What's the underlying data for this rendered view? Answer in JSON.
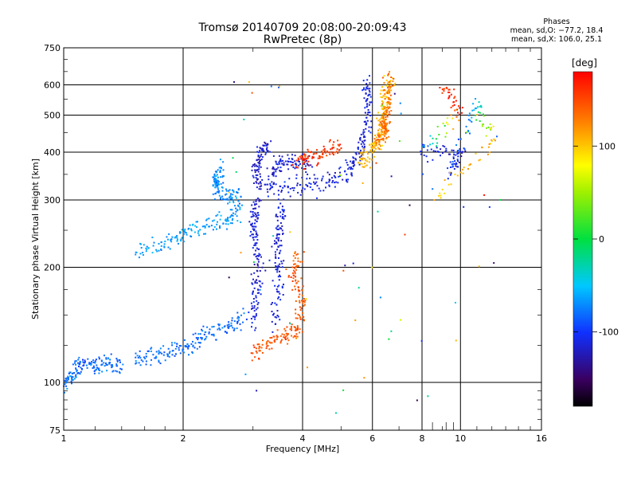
{
  "chart_data": {
    "type": "scatter",
    "title": "Tromsø 20140709 20:08:00-20:09:43",
    "subtitle": "RwPretec (8p)",
    "xlabel": "Frequency [MHz]",
    "ylabel": "Stationary phase Virtual Height [km]",
    "x_scale": "log",
    "y_scale": "log",
    "xlim": [
      1,
      16
    ],
    "ylim": [
      75,
      750
    ],
    "x_ticks": [
      1,
      2,
      4,
      6,
      8,
      10,
      16
    ],
    "y_ticks": [
      75,
      100,
      200,
      300,
      400,
      500,
      600,
      750
    ],
    "grid": true,
    "stats": {
      "heading": "Phases",
      "line_o": "mean, sd,O: −77.2, 18.4",
      "line_x": "mean, sd,X: 106.0, 25.1"
    },
    "colorbar": {
      "label": "[deg]",
      "range": [
        -180,
        180
      ],
      "ticks": [
        100,
        0,
        -100
      ]
    },
    "traces": [
      {
        "points": [
          [
            1.0,
            98,
            -80
          ],
          [
            1.05,
            105,
            -75
          ],
          [
            1.1,
            112,
            -85
          ],
          [
            1.2,
            110,
            -80
          ],
          [
            1.3,
            112,
            -78
          ],
          [
            1.4,
            110,
            -82
          ]
        ]
      },
      {
        "points": [
          [
            1.5,
            115,
            -78
          ],
          [
            1.7,
            117,
            -80
          ],
          [
            1.9,
            120,
            -82
          ],
          [
            2.1,
            125,
            -80
          ],
          [
            2.3,
            135,
            -78
          ],
          [
            2.6,
            140,
            -82
          ],
          [
            2.9,
            148,
            -80
          ]
        ]
      },
      {
        "points": [
          [
            1.5,
            220,
            -60
          ],
          [
            1.8,
            230,
            -65
          ],
          [
            2.0,
            245,
            -62
          ],
          [
            2.3,
            255,
            -65
          ],
          [
            2.6,
            265,
            -62
          ],
          [
            2.8,
            285,
            -70
          ]
        ]
      },
      {
        "points": [
          [
            2.5,
            360,
            -70
          ],
          [
            2.4,
            340,
            -68
          ],
          [
            2.45,
            320,
            -70
          ],
          [
            2.6,
            305,
            -68
          ],
          [
            2.8,
            310,
            -70
          ]
        ]
      },
      {
        "points": [
          [
            3.0,
            140,
            -110
          ],
          [
            3.05,
            170,
            -115
          ],
          [
            3.1,
            200,
            -120
          ],
          [
            3.05,
            240,
            -110
          ],
          [
            3.0,
            270,
            -115
          ],
          [
            3.1,
            300,
            -120
          ]
        ]
      },
      {
        "points": [
          [
            3.4,
            140,
            -115
          ],
          [
            3.5,
            180,
            -110
          ],
          [
            3.45,
            220,
            -115
          ],
          [
            3.5,
            255,
            -112
          ],
          [
            3.55,
            290,
            -110
          ]
        ]
      },
      {
        "points": [
          [
            3.0,
            118,
            150
          ],
          [
            3.3,
            128,
            145
          ],
          [
            3.7,
            132,
            150
          ],
          [
            3.9,
            140,
            148
          ],
          [
            4.0,
            165,
            145
          ],
          [
            3.8,
            190,
            150
          ],
          [
            3.9,
            215,
            140
          ]
        ]
      },
      {
        "points": [
          [
            3.2,
            320,
            -115
          ],
          [
            3.6,
            320,
            -110
          ],
          [
            4.2,
            330,
            -110
          ],
          [
            4.8,
            340,
            -112
          ],
          [
            5.3,
            360,
            -110
          ],
          [
            5.6,
            400,
            -115
          ],
          [
            5.8,
            460,
            -112
          ],
          [
            5.85,
            550,
            -110
          ],
          [
            5.8,
            620,
            -115
          ]
        ]
      },
      {
        "points": [
          [
            3.1,
            330,
            -120
          ],
          [
            3.05,
            360,
            -118
          ],
          [
            3.15,
            400,
            -115
          ],
          [
            3.3,
            420,
            -115
          ]
        ]
      },
      {
        "points": [
          [
            3.3,
            340,
            -118
          ],
          [
            3.5,
            380,
            -115
          ],
          [
            3.8,
            380,
            -112
          ],
          [
            4.2,
            370,
            -115
          ]
        ]
      },
      {
        "points": [
          [
            3.9,
            370,
            165
          ],
          [
            4.1,
            390,
            160
          ],
          [
            4.6,
            400,
            155
          ],
          [
            5.0,
            410,
            160
          ]
        ]
      },
      {
        "points": [
          [
            5.6,
            380,
            110
          ],
          [
            5.9,
            400,
            112
          ],
          [
            6.2,
            420,
            108
          ],
          [
            6.3,
            460,
            110
          ],
          [
            6.4,
            500,
            112
          ],
          [
            6.5,
            560,
            105
          ],
          [
            6.6,
            620,
            108
          ]
        ]
      },
      {
        "points": [
          [
            6.2,
            430,
            140
          ],
          [
            6.4,
            450,
            135
          ],
          [
            6.5,
            480,
            140
          ],
          [
            6.6,
            540,
            138
          ],
          [
            6.6,
            640,
            135
          ]
        ]
      },
      {
        "points": [
          [
            9.0,
            600,
            160
          ],
          [
            10.0,
            520,
            170
          ],
          [
            8.0,
            400,
            -110
          ],
          [
            10.0,
            400,
            -120
          ],
          [
            9.5,
            350,
            -100
          ],
          [
            11.0,
            550,
            -60
          ],
          [
            12.0,
            420,
            120
          ],
          [
            8.5,
            300,
            100
          ]
        ]
      }
    ],
    "scatter_noise": {
      "count": 70
    }
  }
}
